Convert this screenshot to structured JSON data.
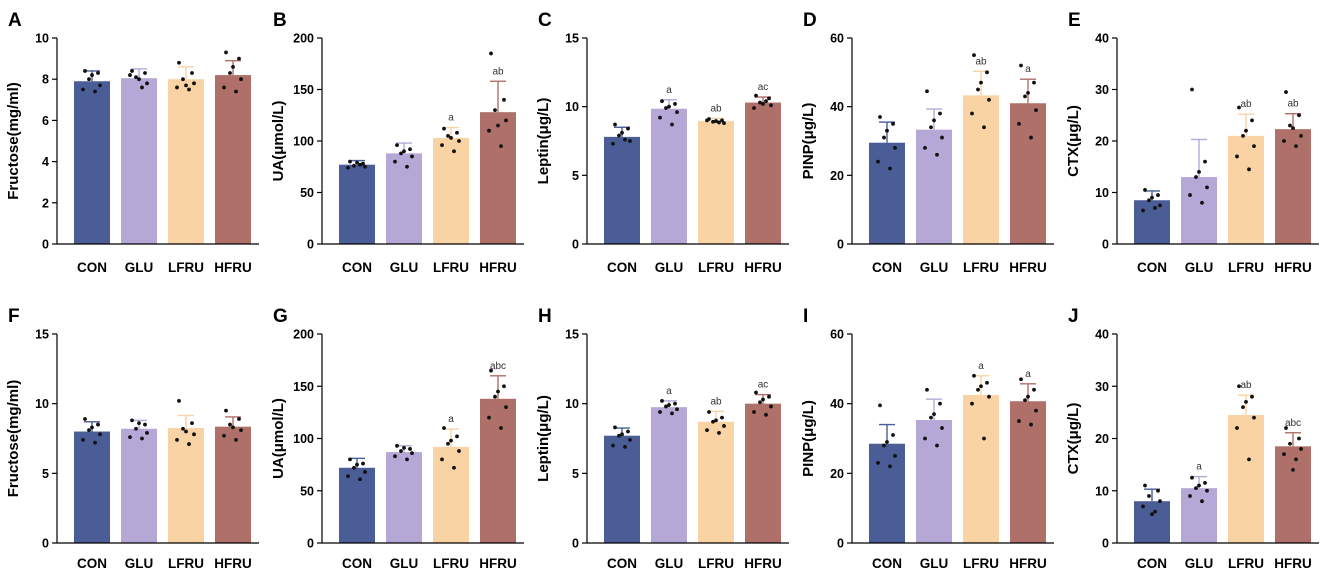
{
  "figure": {
    "groups": [
      "CON",
      "GLU",
      "LFRU",
      "HFRU"
    ],
    "group_colors": {
      "CON": "#4A5D96",
      "GLU": "#B6A8D6",
      "LFRU": "#F9D3A3",
      "HFRU": "#B0706A"
    }
  },
  "chart_data": [
    {
      "panel": "A",
      "type": "bar",
      "title": "",
      "categories": [
        "CON",
        "GLU",
        "LFRU",
        "HFRU"
      ],
      "xlabel": "",
      "ylabel": "Fructose(mg/ml)",
      "ylim": [
        0,
        10
      ],
      "yticks": [
        "0",
        "2",
        "4",
        "6",
        "8",
        "10"
      ],
      "values": [
        7.9,
        8.05,
        8.0,
        8.2
      ],
      "errors": [
        0.5,
        0.45,
        0.6,
        0.7
      ],
      "points": [
        [
          8.4,
          8.3,
          8.0,
          7.7,
          7.5,
          7.4,
          8.2
        ],
        [
          8.4,
          8.3,
          8.1,
          7.8,
          8.2,
          7.6,
          8.0
        ],
        [
          8.8,
          8.3,
          8.0,
          7.8,
          7.6,
          7.5,
          7.7
        ],
        [
          9.3,
          9.0,
          8.3,
          8.0,
          7.6,
          7.4,
          8.6
        ]
      ],
      "significance": [
        "",
        "",
        "",
        ""
      ]
    },
    {
      "panel": "B",
      "type": "bar",
      "title": "",
      "categories": [
        "CON",
        "GLU",
        "LFRU",
        "HFRU"
      ],
      "xlabel": "",
      "ylabel": "UA(μmol/L)",
      "ylim": [
        0,
        200
      ],
      "yticks": [
        "0",
        "50",
        "100",
        "150",
        "200"
      ],
      "values": [
        77,
        88,
        103,
        128
      ],
      "errors": [
        4,
        10,
        10,
        30
      ],
      "points": [
        [
          80,
          78,
          76,
          75,
          74,
          77,
          79
        ],
        [
          96,
          92,
          88,
          85,
          80,
          75,
          90
        ],
        [
          112,
          108,
          105,
          100,
          96,
          90,
          103
        ],
        [
          185,
          140,
          130,
          120,
          110,
          95,
          115
        ]
      ],
      "significance": [
        "",
        "",
        "a",
        "ab"
      ]
    },
    {
      "panel": "C",
      "type": "bar",
      "title": "",
      "categories": [
        "CON",
        "GLU",
        "LFRU",
        "HFRU"
      ],
      "xlabel": "",
      "ylabel": "Leptin(μg/L)",
      "ylim": [
        0,
        15
      ],
      "yticks": [
        "0",
        "5",
        "10",
        "15"
      ],
      "values": [
        7.8,
        9.85,
        8.95,
        10.3
      ],
      "errors": [
        0.7,
        0.65,
        0.2,
        0.4
      ],
      "points": [
        [
          8.7,
          8.4,
          7.9,
          7.5,
          7.3,
          7.6,
          8.1
        ],
        [
          10.4,
          10.2,
          9.9,
          9.6,
          9.2,
          8.7,
          10.0
        ],
        [
          9.1,
          9.0,
          8.9,
          8.8,
          9.0,
          8.85,
          8.95
        ],
        [
          10.8,
          10.6,
          10.3,
          10.1,
          9.9,
          10.4,
          10.2
        ]
      ],
      "significance": [
        "",
        "a",
        "ab",
        "ac"
      ]
    },
    {
      "panel": "D",
      "type": "bar",
      "title": "",
      "categories": [
        "CON",
        "GLU",
        "LFRU",
        "HFRU"
      ],
      "xlabel": "",
      "ylabel": "PINP(μg/L)",
      "ylim": [
        0,
        60
      ],
      "yticks": [
        "0",
        "20",
        "40",
        "60"
      ],
      "values": [
        29.5,
        33.3,
        43.3,
        41.0
      ],
      "errors": [
        6,
        6,
        7,
        7
      ],
      "points": [
        [
          37,
          35,
          31,
          28,
          24,
          22,
          33
        ],
        [
          44.5,
          38,
          34,
          31,
          28,
          26,
          36
        ],
        [
          55,
          50,
          45,
          42,
          38,
          34,
          47
        ],
        [
          52,
          47,
          43,
          39,
          35,
          31,
          44
        ]
      ],
      "significance": [
        "",
        "",
        "ab",
        "a"
      ]
    },
    {
      "panel": "E",
      "type": "bar",
      "title": "",
      "categories": [
        "CON",
        "GLU",
        "LFRU",
        "HFRU"
      ],
      "xlabel": "",
      "ylabel": "CTX(μg/L)",
      "ylim": [
        0,
        40
      ],
      "yticks": [
        "0",
        "10",
        "20",
        "30",
        "40"
      ],
      "values": [
        8.5,
        13.0,
        21.0,
        22.3
      ],
      "errors": [
        1.8,
        7.3,
        4.2,
        3.0
      ],
      "points": [
        [
          10.5,
          9.5,
          8.5,
          7.5,
          6.5,
          7.0,
          9.0
        ],
        [
          30,
          16,
          13,
          11,
          9.5,
          8.0,
          14
        ],
        [
          26.5,
          24,
          21,
          19,
          17,
          14.5,
          22
        ],
        [
          29.5,
          25,
          23,
          21,
          20,
          19,
          22.5
        ]
      ],
      "significance": [
        "",
        "",
        "ab",
        "ab"
      ]
    },
    {
      "panel": "F",
      "type": "bar",
      "title": "",
      "categories": [
        "CON",
        "GLU",
        "LFRU",
        "HFRU"
      ],
      "xlabel": "",
      "ylabel": "Fructose(mg/ml)",
      "ylim": [
        0,
        15
      ],
      "yticks": [
        "0",
        "5",
        "10",
        "15"
      ],
      "values": [
        8.0,
        8.2,
        8.25,
        8.35
      ],
      "errors": [
        0.7,
        0.6,
        0.9,
        0.7
      ],
      "points": [
        [
          8.9,
          8.5,
          8.1,
          7.8,
          7.4,
          7.2,
          8.3
        ],
        [
          8.8,
          8.5,
          8.2,
          7.9,
          7.6,
          7.5,
          8.6
        ],
        [
          10.2,
          8.6,
          8.2,
          7.8,
          7.4,
          7.1,
          8.0
        ],
        [
          9.5,
          8.9,
          8.5,
          8.1,
          7.7,
          7.4,
          8.3
        ]
      ],
      "significance": [
        "",
        "",
        "",
        ""
      ]
    },
    {
      "panel": "G",
      "type": "bar",
      "title": "",
      "categories": [
        "CON",
        "GLU",
        "LFRU",
        "HFRU"
      ],
      "xlabel": "",
      "ylabel": "UA(μmol/L)",
      "ylim": [
        0,
        200
      ],
      "yticks": [
        "0",
        "50",
        "100",
        "150",
        "200"
      ],
      "values": [
        72,
        87,
        92,
        138
      ],
      "errors": [
        9,
        6,
        17,
        22
      ],
      "points": [
        [
          80,
          76,
          72,
          68,
          64,
          61,
          75
        ],
        [
          93,
          90,
          88,
          86,
          83,
          80,
          91
        ],
        [
          110,
          102,
          95,
          88,
          80,
          72,
          98
        ],
        [
          165,
          150,
          140,
          130,
          120,
          110,
          145
        ]
      ],
      "significance": [
        "",
        "",
        "a",
        "abc"
      ]
    },
    {
      "panel": "H",
      "type": "bar",
      "title": "",
      "categories": [
        "CON",
        "GLU",
        "LFRU",
        "HFRU"
      ],
      "xlabel": "",
      "ylabel": "Leptin(μg/L)",
      "ylim": [
        0,
        15
      ],
      "yticks": [
        "0",
        "5",
        "10",
        "15"
      ],
      "values": [
        7.7,
        9.75,
        8.7,
        10.0
      ],
      "errors": [
        0.55,
        0.45,
        0.75,
        0.65
      ],
      "points": [
        [
          8.3,
          8.0,
          7.7,
          7.4,
          7.0,
          6.9,
          7.8
        ],
        [
          10.2,
          10.0,
          9.8,
          9.6,
          9.4,
          9.3,
          9.9
        ],
        [
          9.4,
          9.0,
          8.7,
          8.4,
          8.1,
          7.9,
          8.8
        ],
        [
          10.8,
          10.5,
          10.1,
          9.8,
          9.4,
          9.2,
          10.3
        ]
      ],
      "significance": [
        "",
        "a",
        "ab",
        "ac"
      ]
    },
    {
      "panel": "I",
      "type": "bar",
      "title": "",
      "categories": [
        "CON",
        "GLU",
        "LFRU",
        "HFRU"
      ],
      "xlabel": "",
      "ylabel": "PINP(μg/L)",
      "ylim": [
        0,
        60
      ],
      "yticks": [
        "0",
        "20",
        "40",
        "60"
      ],
      "values": [
        28.5,
        35.3,
        42.5,
        40.7
      ],
      "errors": [
        5.5,
        6,
        5.5,
        5
      ],
      "points": [
        [
          39.5,
          31,
          28,
          25,
          23,
          22,
          29
        ],
        [
          44,
          40,
          36,
          33,
          30,
          28,
          37
        ],
        [
          48,
          46,
          44,
          42,
          40,
          30,
          45
        ],
        [
          47,
          44,
          41,
          38,
          35,
          34,
          42
        ]
      ],
      "significance": [
        "",
        "",
        "a",
        "a"
      ]
    },
    {
      "panel": "J",
      "type": "bar",
      "title": "",
      "categories": [
        "CON",
        "GLU",
        "LFRU",
        "HFRU"
      ],
      "xlabel": "",
      "ylabel": "CTX(μg/L)",
      "ylim": [
        0,
        40
      ],
      "yticks": [
        "0",
        "10",
        "20",
        "30",
        "40"
      ],
      "values": [
        8.0,
        10.5,
        24.5,
        18.5
      ],
      "errors": [
        2.3,
        2.2,
        3.8,
        2.6
      ],
      "points": [
        [
          11,
          10,
          9,
          8,
          7,
          6,
          5.5
        ],
        [
          12.5,
          11.5,
          10.5,
          10,
          9,
          8,
          11
        ],
        [
          30,
          28,
          26,
          24,
          22,
          16,
          27
        ],
        [
          22,
          20,
          19,
          18,
          17,
          16,
          14
        ]
      ],
      "significance": [
        "",
        "a",
        "ab",
        "abc"
      ]
    }
  ]
}
